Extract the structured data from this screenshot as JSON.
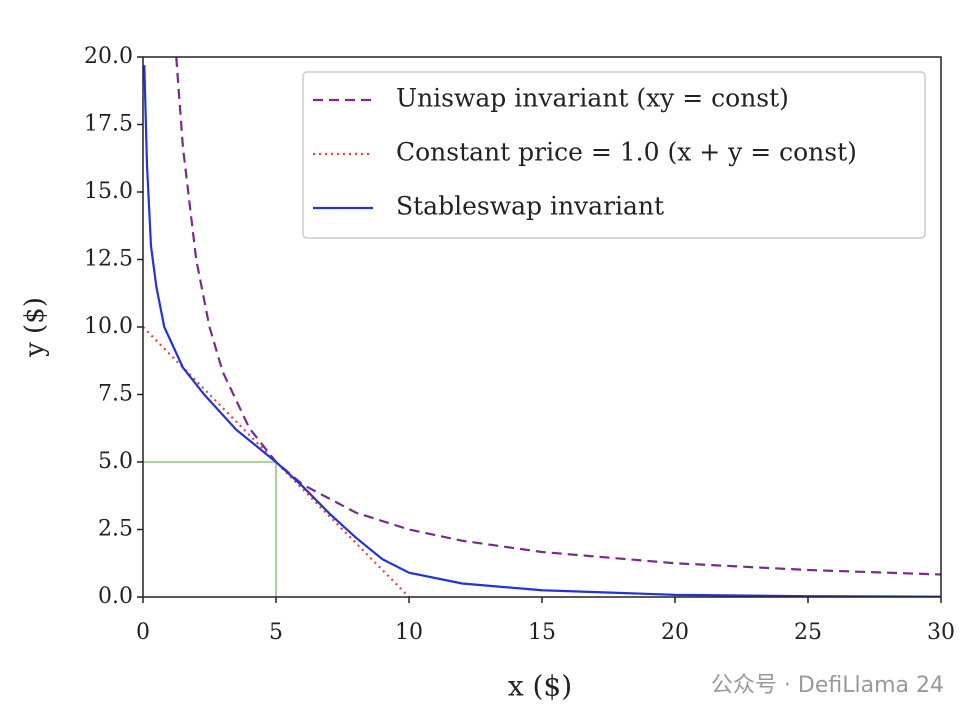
{
  "chart_data": {
    "type": "line",
    "xlabel": "x ($)",
    "ylabel": "y ($)",
    "xlim": [
      0,
      30
    ],
    "ylim": [
      0,
      20
    ],
    "xticks": [
      0,
      5,
      10,
      15,
      20,
      25,
      30
    ],
    "yticks": [
      {
        "value": 0,
        "label": "0.0"
      },
      {
        "value": 2.5,
        "label": "2.5"
      },
      {
        "value": 5,
        "label": "5.0"
      },
      {
        "value": 7.5,
        "label": "7.5"
      },
      {
        "value": 10,
        "label": "10.0"
      },
      {
        "value": 12.5,
        "label": "12.5"
      },
      {
        "value": 15,
        "label": "15.0"
      },
      {
        "value": 17.5,
        "label": "17.5"
      },
      {
        "value": 20,
        "label": "20.0"
      }
    ],
    "legend": "upper right",
    "series": [
      {
        "name": "Uniswap invariant (xy = const)",
        "color": "#7b2a8c",
        "linestyle": "dashed",
        "x": [
          1.25,
          1.5,
          2,
          2.5,
          3,
          4,
          5,
          6,
          8,
          10,
          12,
          15,
          20,
          25,
          30
        ],
        "values": [
          20,
          16.667,
          12.5,
          10,
          8.333,
          6.25,
          5,
          4.167,
          3.125,
          2.5,
          2.083,
          1.667,
          1.25,
          1,
          0.833
        ]
      },
      {
        "name": "Constant price = 1.0 (x + y = const)",
        "color": "#e8432e",
        "linestyle": "dotted",
        "x": [
          0,
          10
        ],
        "values": [
          10,
          0
        ]
      },
      {
        "name": "Stableswap invariant",
        "color": "#2233dd",
        "linestyle": "solid",
        "x": [
          0.05,
          0.15,
          0.3,
          0.5,
          0.8,
          1.5,
          2.3,
          3.5,
          5,
          6,
          7,
          8,
          9,
          10,
          12,
          15,
          20,
          25,
          30
        ],
        "values": [
          19.7,
          16,
          13,
          11.5,
          10,
          8.5,
          7.5,
          6.2,
          5,
          4.1,
          3.1,
          2.2,
          1.4,
          0.9,
          0.5,
          0.25,
          0.08,
          0.03,
          0.01
        ]
      }
    ],
    "markers": [
      {
        "x": 5,
        "y": 5,
        "color": "#7cb36b"
      }
    ],
    "watermark": "公众号 · DefiLlama 24"
  }
}
